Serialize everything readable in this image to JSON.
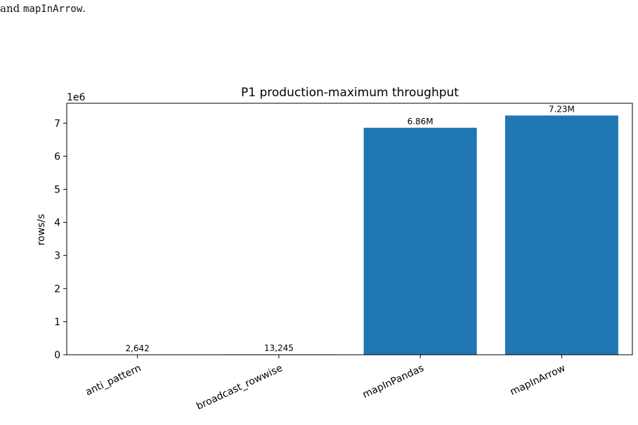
{
  "text_fragment": {
    "prefix": "and ",
    "code": "mapInArrow",
    "suffix": "."
  },
  "chart_data": {
    "type": "bar",
    "title": "P1 production-maximum throughput",
    "xlabel": "",
    "ylabel": "rows/s",
    "offset_text": "1e6",
    "categories": [
      "anti_pattern",
      "broadcast_rowwise",
      "mapInPandas",
      "mapInArrow"
    ],
    "values": [
      2642,
      13245,
      6860000,
      7230000
    ],
    "data_labels": [
      "2,642",
      "13,245",
      "6.86M",
      "7.23M"
    ],
    "ylim": [
      0,
      7600000
    ],
    "yticks": [
      0,
      1,
      2,
      3,
      4,
      5,
      6,
      7
    ],
    "ytick_scale": 1000000,
    "grid": false,
    "bar_color": "#1f77b4"
  }
}
